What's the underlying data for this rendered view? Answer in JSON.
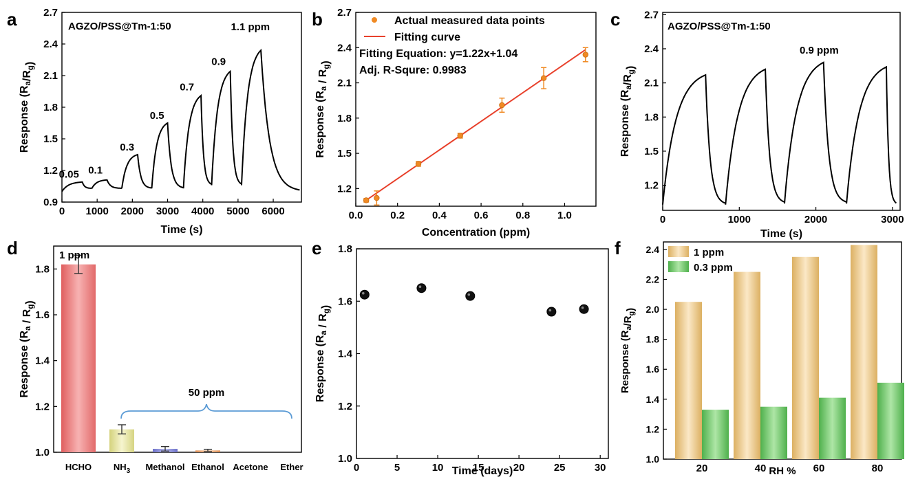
{
  "chart_data": [
    {
      "panel": "a",
      "type": "line",
      "title": "AGZO/PSS@Tm-1:50",
      "xlabel": "Time (s)",
      "ylabel": {
        "main": "Response (R",
        "sub1": "a",
        "mid": "/R",
        "sub2": "g",
        "end": ")"
      },
      "xlim": [
        0,
        6800
      ],
      "ylim": [
        0.9,
        2.7
      ],
      "xticks": [
        0,
        1000,
        2000,
        3000,
        4000,
        5000,
        6000
      ],
      "yticks": [
        0.9,
        1.2,
        1.5,
        1.8,
        2.1,
        2.4,
        2.7
      ],
      "pulses": [
        {
          "start": 0,
          "end": 580,
          "base": 1.0,
          "peak": 1.09
        },
        {
          "start": 850,
          "end": 1280,
          "base": 1.03,
          "peak": 1.11
        },
        {
          "start": 1700,
          "end": 2150,
          "base": 1.03,
          "peak": 1.35
        },
        {
          "start": 2550,
          "end": 3000,
          "base": 1.03,
          "peak": 1.65
        },
        {
          "start": 3450,
          "end": 3950,
          "base": 1.03,
          "peak": 1.91
        },
        {
          "start": 4250,
          "end": 4780,
          "base": 1.06,
          "peak": 2.14
        },
        {
          "start": 5100,
          "end": 5650,
          "base": 1.06,
          "peak": 2.34
        }
      ],
      "tail_end": {
        "x": 6750,
        "y": 1.0
      },
      "annotations": [
        {
          "text": "0.05",
          "x": 200,
          "y": 1.13
        },
        {
          "text": "0.1",
          "x": 950,
          "y": 1.17
        },
        {
          "text": "0.3",
          "x": 1850,
          "y": 1.39
        },
        {
          "text": "0.5",
          "x": 2700,
          "y": 1.69
        },
        {
          "text": "0.7",
          "x": 3550,
          "y": 1.96
        },
        {
          "text": "0.9",
          "x": 4450,
          "y": 2.2
        },
        {
          "text": "1.1 ppm",
          "x": 5350,
          "y": 2.53
        }
      ]
    },
    {
      "panel": "b",
      "type": "scatter",
      "xlabel": "Concentration (ppm)",
      "ylabel": {
        "main": "Response (R",
        "sub1": "a",
        "mid": " / R",
        "sub2": "g",
        "end": ")"
      },
      "xlim": [
        0,
        1.15
      ],
      "ylim": [
        1.05,
        2.7
      ],
      "xticks": [
        0.0,
        0.2,
        0.4,
        0.6,
        0.8,
        1.0
      ],
      "yticks": [
        1.2,
        1.5,
        1.8,
        2.1,
        2.4,
        2.7
      ],
      "points": [
        {
          "x": 0.05,
          "y": 1.1,
          "err": 0.015
        },
        {
          "x": 0.1,
          "y": 1.12,
          "err": 0.06
        },
        {
          "x": 0.3,
          "y": 1.41,
          "err": 0.02
        },
        {
          "x": 0.5,
          "y": 1.65,
          "err": 0.02
        },
        {
          "x": 0.7,
          "y": 1.91,
          "err": 0.06
        },
        {
          "x": 0.9,
          "y": 2.14,
          "err": 0.09
        },
        {
          "x": 1.1,
          "y": 2.34,
          "err": 0.06
        }
      ],
      "fit": {
        "slope": 1.22,
        "intercept": 1.04,
        "x0": 0.05,
        "x1": 1.1
      },
      "legend": [
        "Actual measured data points",
        "Fitting curve"
      ],
      "equation": "Fitting Equation: y=1.22x+1.04",
      "r_square": "Adj. R-Squre: 0.9983"
    },
    {
      "panel": "c",
      "type": "line",
      "title": "AGZO/PSS@Tm-1:50",
      "label": "0.9 ppm",
      "xlabel": "Time (s)",
      "ylabel": {
        "main": "Response (R",
        "sub1": "a",
        "mid": "/R",
        "sub2": "g",
        "end": ")"
      },
      "xlim": [
        0,
        3100
      ],
      "ylim": [
        0.98,
        2.72
      ],
      "xticks": [
        0,
        1000,
        2000,
        3000
      ],
      "yticks": [
        1.2,
        1.5,
        1.8,
        2.1,
        2.4,
        2.7
      ],
      "pulses": [
        {
          "start": 0,
          "end": 560,
          "base": 1.03,
          "peak": 2.17
        },
        {
          "start": 820,
          "end": 1340,
          "base": 1.03,
          "peak": 2.22
        },
        {
          "start": 1590,
          "end": 2100,
          "base": 1.04,
          "peak": 2.28
        },
        {
          "start": 2400,
          "end": 2920,
          "base": 1.04,
          "peak": 2.24
        }
      ],
      "tail_end": {
        "x": 3050,
        "y": 1.03
      }
    },
    {
      "panel": "d",
      "type": "bar",
      "categories": [
        "HCHO",
        "NH3",
        "Methanol",
        "Ethanol",
        "Acetone",
        "Ether"
      ],
      "category_labels": [
        {
          "main": "HCHO",
          "sub": ""
        },
        {
          "main": "NH",
          "sub": "3"
        },
        {
          "main": "Methanol",
          "sub": ""
        },
        {
          "main": "Ethanol",
          "sub": ""
        },
        {
          "main": "Acetone",
          "sub": ""
        },
        {
          "main": "Ether",
          "sub": ""
        }
      ],
      "values": [
        1.82,
        1.1,
        1.015,
        1.008,
        1.0,
        1.0
      ],
      "errors": [
        0.04,
        0.02,
        0.01,
        0.005,
        0,
        0
      ],
      "colors": [
        "#ee8c8c",
        "#e5e4a4",
        "#8f93d8",
        "#e9ab7a",
        "#cccccc",
        "#cccccc"
      ],
      "ylabel": {
        "main": "Response (R",
        "sub1": "a",
        "mid": " / R",
        "sub2": "g",
        "end": ")"
      },
      "ylim": [
        1.0,
        1.9
      ],
      "yticks": [
        1.0,
        1.2,
        1.4,
        1.6,
        1.8
      ],
      "annotations": [
        "1 ppm",
        "50 ppm"
      ]
    },
    {
      "panel": "e",
      "type": "scatter",
      "xlabel": "Time (days)",
      "ylabel": {
        "main": "Response (R",
        "sub1": "a",
        "mid": " / R",
        "sub2": "g",
        "end": ")"
      },
      "xlim": [
        0,
        31
      ],
      "ylim": [
        1.0,
        1.8
      ],
      "xticks": [
        0,
        5,
        10,
        15,
        20,
        25,
        30
      ],
      "yticks": [
        1.0,
        1.2,
        1.4,
        1.6,
        1.8
      ],
      "x": [
        1,
        8,
        14,
        24,
        28
      ],
      "y": [
        1.625,
        1.65,
        1.62,
        1.56,
        1.57
      ]
    },
    {
      "panel": "f",
      "type": "bar",
      "categories": [
        "20",
        "40",
        "60",
        "80"
      ],
      "xlabel": "RH %",
      "ylabel": {
        "main": "Response (R",
        "sub1": "a",
        "mid": "/R",
        "sub2": "g",
        "end": ")"
      },
      "ylim": [
        1.0,
        2.45
      ],
      "yticks": [
        1.0,
        1.2,
        1.4,
        1.6,
        1.8,
        2.0,
        2.2,
        2.4
      ],
      "series": [
        {
          "name": "1 ppm",
          "values": [
            2.05,
            2.25,
            2.35,
            2.43
          ],
          "color": "#e8c98a"
        },
        {
          "name": "0.3 ppm",
          "values": [
            1.33,
            1.35,
            1.41,
            1.51
          ],
          "color": "#7ccb73"
        }
      ]
    }
  ]
}
